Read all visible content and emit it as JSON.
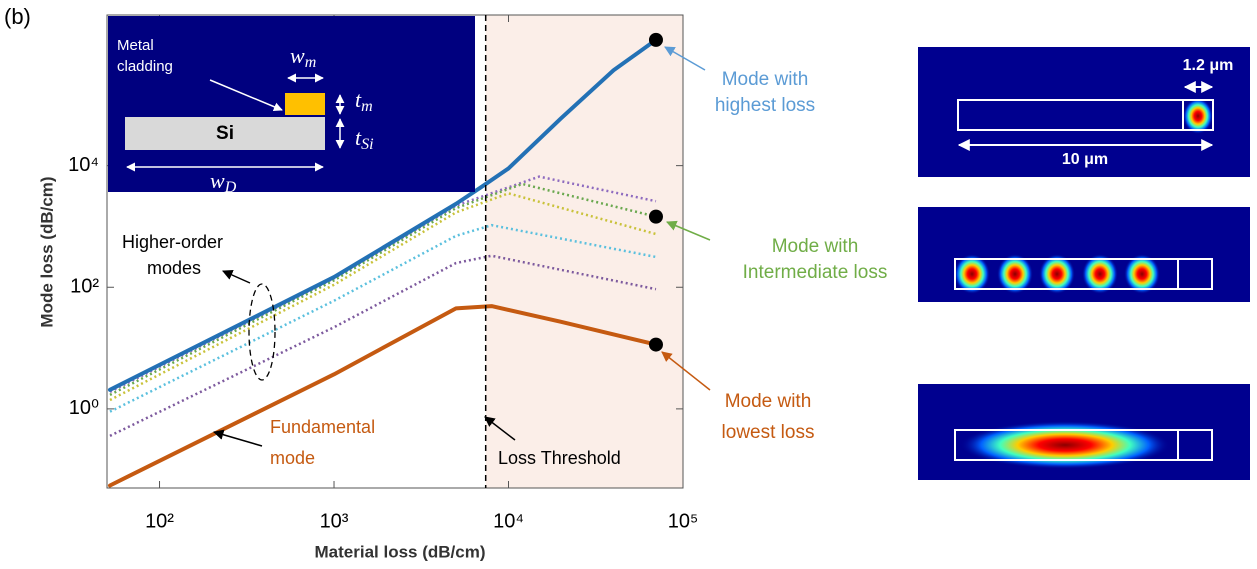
{
  "chart_data": {
    "type": "line",
    "panel_label": "(b)",
    "xlabel": "Material loss (dB/cm)",
    "ylabel": "Mode loss (dB/cm)",
    "xscale": "log",
    "yscale": "log",
    "xlim": [
      50,
      100000
    ],
    "ylim": [
      0.05,
      3000000
    ],
    "xticks": [
      {
        "value": 100,
        "label": "10²"
      },
      {
        "value": 1000,
        "label": "10³"
      },
      {
        "value": 10000,
        "label": "10⁴"
      },
      {
        "value": 100000,
        "label": "10⁵"
      }
    ],
    "yticks": [
      {
        "value": 1,
        "label": "10⁰"
      },
      {
        "value": 100,
        "label": "10²"
      },
      {
        "value": 10000,
        "label": "10⁴"
      }
    ],
    "threshold": {
      "x": 7400,
      "label": "Loss Threshold",
      "shade": "#fbeee8"
    },
    "series": [
      {
        "color": "#8e6bbf",
        "style": "dotted",
        "x": [
          52,
          1000,
          5000,
          15000,
          70000
        ],
        "values": [
          1.9,
          140,
          2200,
          6600,
          2600
        ]
      },
      {
        "color": "#6aa84f",
        "style": "dotted",
        "x": [
          52,
          1000,
          5000,
          12000,
          70000
        ],
        "values": [
          1.7,
          130,
          2000,
          5000,
          1450
        ],
        "end_marker": true,
        "label": [
          "Mode with",
          "Intermediate loss"
        ],
        "label_color": "#70ad47"
      },
      {
        "color": "#c9c23a",
        "style": "dotted",
        "x": [
          52,
          1000,
          5000,
          10000,
          70000
        ],
        "values": [
          1.4,
          110,
          1700,
          3500,
          750
        ]
      },
      {
        "color": "#5bc0de",
        "style": "dotted",
        "x": [
          52,
          1000,
          5000,
          8000,
          70000
        ],
        "values": [
          0.9,
          60,
          700,
          1050,
          315
        ]
      },
      {
        "color": "#7d5a9e",
        "style": "dotted",
        "x": [
          52,
          1000,
          5000,
          8000,
          70000
        ],
        "values": [
          0.36,
          22,
          250,
          330,
          93
        ]
      },
      {
        "color": "#2371b5",
        "style": "solid",
        "x": [
          52,
          1000,
          5000,
          7000,
          10000,
          20000,
          40000,
          70000
        ],
        "values": [
          2.06,
          147,
          2350,
          4470,
          9000,
          60000,
          370000,
          1170000
        ],
        "end_marker": true,
        "label": [
          "Mode with",
          "highest loss"
        ],
        "label_color": "#5b9bd5"
      },
      {
        "color": "#c55a11",
        "style": "solid",
        "x": [
          52,
          1000,
          5000,
          8000,
          20000,
          70000
        ],
        "values": [
          0.055,
          3.7,
          45,
          49,
          27,
          11.4
        ],
        "end_marker": true,
        "label": [
          "Mode with",
          "lowest loss"
        ],
        "label_color": "#c55a11"
      }
    ],
    "annotations": {
      "higher_order": [
        "Higher-order",
        "modes"
      ],
      "fundamental": [
        "Fundamental",
        "mode"
      ]
    },
    "inset": {
      "metal": [
        "Metal",
        "cladding"
      ],
      "si": "Si",
      "w_m": {
        "base": "w",
        "sub": "m"
      },
      "t_m": {
        "base": "t",
        "sub": "m"
      },
      "t_si": {
        "base": "t",
        "sub": "Si"
      },
      "w_d": {
        "base": "w",
        "sub": "D"
      }
    }
  },
  "mode_panels": {
    "width_label": "1.2 μm",
    "length_label": "10 μm"
  }
}
